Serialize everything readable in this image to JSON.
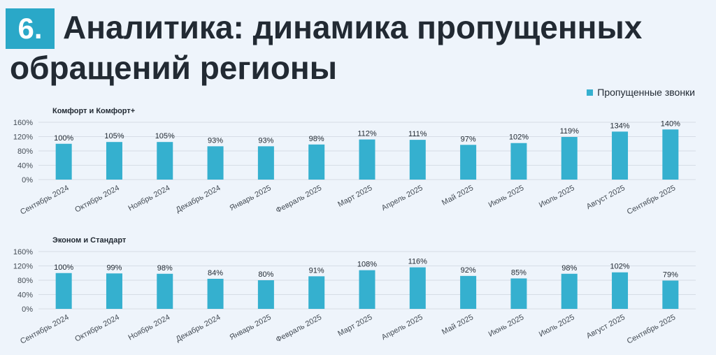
{
  "header": {
    "number": "6.",
    "title": "Аналитика: динамика пропущенных обращений регионы",
    "accent_color": "#2aa8c8"
  },
  "legend": {
    "label": "Пропущенные звонки",
    "color": "#35b0cf"
  },
  "chart_data": [
    {
      "type": "bar",
      "title": "Комфорт и Комфорт+",
      "categories": [
        "Сентябрь 2024",
        "Октябрь 2024",
        "Ноябрь 2024",
        "Декабрь 2024",
        "Январь 2025",
        "Февраль 2025",
        "Март 2025",
        "Апрель 2025",
        "Май 2025",
        "Июнь 2025",
        "Июль 2025",
        "Август 2025",
        "Сентябрь 2025"
      ],
      "series": [
        {
          "name": "Пропущенные звонки",
          "values": [
            100,
            105,
            105,
            93,
            93,
            98,
            112,
            111,
            97,
            102,
            119,
            134,
            140
          ]
        }
      ],
      "data_labels": [
        "100%",
        "105%",
        "105%",
        "93%",
        "93%",
        "98%",
        "112%",
        "111%",
        "97%",
        "102%",
        "119%",
        "134%",
        "140%"
      ],
      "y_ticks": [
        "0%",
        "40%",
        "80%",
        "120%",
        "160%"
      ],
      "ylim": [
        0,
        160
      ],
      "grid": true
    },
    {
      "type": "bar",
      "title": "Эконом и Стандарт",
      "categories": [
        "Сентябрь 2024",
        "Октябрь 2024",
        "Ноябрь 2024",
        "Декабрь 2024",
        "Январь 2025",
        "Февраль 2025",
        "Март 2025",
        "Апрель 2025",
        "Май 2025",
        "Июнь 2025",
        "Июль 2025",
        "Август 2025",
        "Сентябрь 2025"
      ],
      "series": [
        {
          "name": "Пропущенные звонки",
          "values": [
            100,
            99,
            98,
            84,
            80,
            91,
            108,
            116,
            92,
            85,
            98,
            102,
            79
          ]
        }
      ],
      "data_labels": [
        "100%",
        "99%",
        "98%",
        "84%",
        "80%",
        "91%",
        "108%",
        "116%",
        "92%",
        "85%",
        "98%",
        "102%",
        "79%"
      ],
      "y_ticks": [
        "0%",
        "40%",
        "80%",
        "120%",
        "160%"
      ],
      "ylim": [
        0,
        160
      ],
      "grid": true
    }
  ]
}
